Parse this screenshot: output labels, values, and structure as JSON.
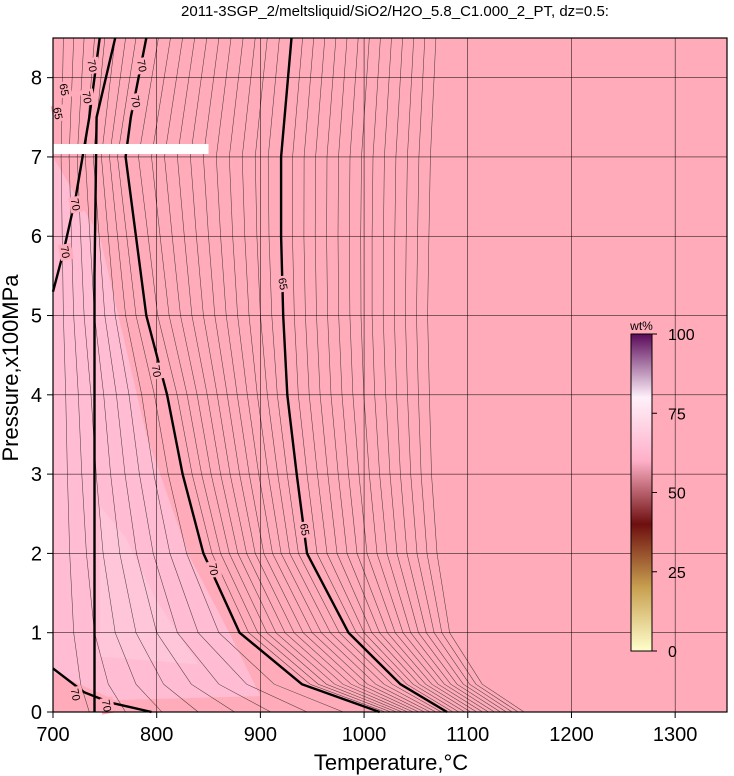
{
  "chart_data": {
    "type": "heatmap",
    "title": "2011-3SGP_2/meltsliquid/SiO2/H2O_5.8_C1.000_2_PT, dz=0.5:",
    "xlabel": "Temperature,°C",
    "ylabel": "Pressure,x100MPa",
    "xlim": [
      700,
      1350
    ],
    "ylim": [
      0,
      8.5
    ],
    "xticks": [
      700,
      800,
      900,
      1000,
      1100,
      1200,
      1300
    ],
    "yticks": [
      0,
      1,
      2,
      3,
      4,
      5,
      6,
      7,
      8
    ],
    "grid": true,
    "contour_interval": 0.5,
    "background_color": "#ffabb9",
    "colorbar": {
      "unit": "wt%",
      "range": [
        0,
        100
      ],
      "ticks": [
        0,
        25,
        50,
        75,
        100
      ],
      "position": "right",
      "colors": [
        "#ffffcc",
        "#c8a050",
        "#6e0f0f",
        "#ffb0c8",
        "#fff0fa",
        "#5a0a5a"
      ]
    },
    "highlighted_contours": [
      {
        "level": 70,
        "points": [
          [
            760,
            8.5
          ],
          [
            742,
            7.5
          ],
          [
            740,
            5.5
          ],
          [
            740,
            0
          ]
        ]
      },
      {
        "level": 70,
        "points": [
          [
            790,
            8.5
          ],
          [
            775,
            7.5
          ],
          [
            770,
            7.0
          ],
          [
            790,
            5.0
          ],
          [
            810,
            4.0
          ],
          [
            825,
            3.0
          ],
          [
            845,
            2.0
          ],
          [
            880,
            1.0
          ],
          [
            940,
            0.35
          ],
          [
            1015,
            0
          ]
        ]
      },
      {
        "level": 65,
        "points": [
          [
            930,
            8.5
          ],
          [
            920,
            7.0
          ],
          [
            920,
            6.0
          ],
          [
            922,
            5.0
          ],
          [
            926,
            4.0
          ],
          [
            935,
            3.0
          ],
          [
            945,
            2.0
          ],
          [
            985,
            1.0
          ],
          [
            1035,
            0.35
          ],
          [
            1080,
            0
          ]
        ]
      },
      {
        "level": 70,
        "points": [
          [
            700,
            5.3
          ],
          [
            710,
            5.8
          ],
          [
            722,
            6.5
          ],
          [
            735,
            7.5
          ],
          [
            745,
            8.5
          ]
        ]
      },
      {
        "level": 70,
        "points": [
          [
            700,
            0.55
          ],
          [
            730,
            0.25
          ],
          [
            755,
            0.12
          ],
          [
            795,
            0
          ]
        ]
      }
    ],
    "contour_labels": [
      {
        "text": "70",
        "x": 738,
        "y": 8.15
      },
      {
        "text": "70",
        "x": 786,
        "y": 8.15
      },
      {
        "text": "65",
        "x": 711,
        "y": 7.85
      },
      {
        "text": "70",
        "x": 733,
        "y": 7.75
      },
      {
        "text": "65",
        "x": 705,
        "y": 7.55
      },
      {
        "text": "70",
        "x": 780,
        "y": 7.7
      },
      {
        "text": "70",
        "x": 722,
        "y": 6.4
      },
      {
        "text": "70",
        "x": 712,
        "y": 5.8
      },
      {
        "text": "65",
        "x": 922,
        "y": 5.4
      },
      {
        "text": "70",
        "x": 800,
        "y": 4.3
      },
      {
        "text": "65",
        "x": 943,
        "y": 2.3
      },
      {
        "text": "70",
        "x": 855,
        "y": 1.8
      },
      {
        "text": "70",
        "x": 722,
        "y": 0.22
      },
      {
        "text": "70",
        "x": 752,
        "y": 0.08
      }
    ],
    "annotation_bar": {
      "x": [
        700,
        850
      ],
      "y": 7.1
    }
  }
}
